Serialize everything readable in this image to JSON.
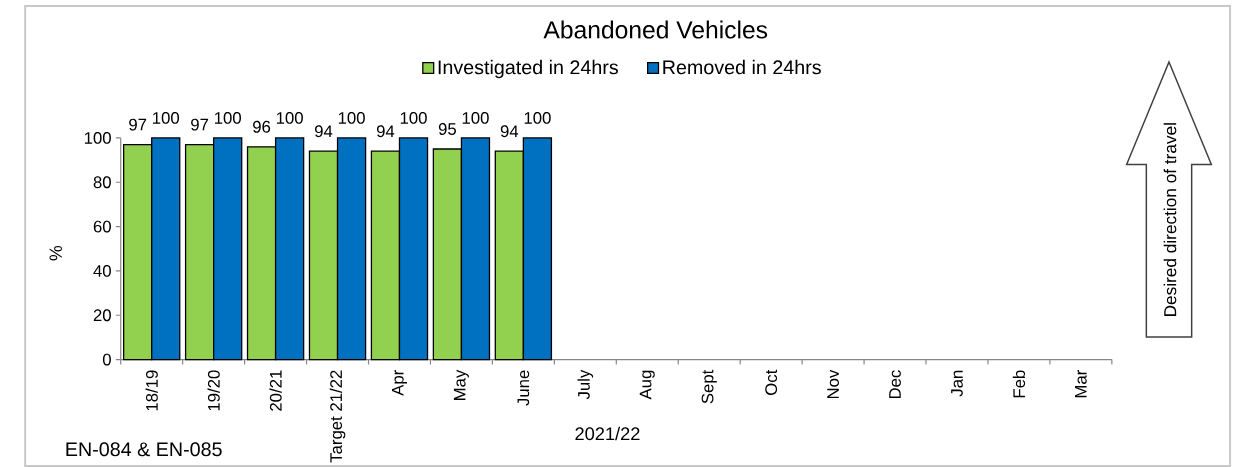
{
  "chart_data": {
    "type": "bar",
    "title": "Abandoned Vehicles",
    "xlabel": "2021/22",
    "ylabel": "%",
    "categories": [
      "18/19",
      "19/20",
      "20/21",
      "Target 21/22",
      "Apr",
      "May",
      "June",
      "July",
      "Aug",
      "Sept",
      "Oct",
      "Nov",
      "Dec",
      "Jan",
      "Feb",
      "Mar"
    ],
    "series": [
      {
        "name": "Investigated in 24hrs",
        "color": "#92d050",
        "values": [
          97,
          97,
          96,
          94,
          94,
          95,
          94,
          null,
          null,
          null,
          null,
          null,
          null,
          null,
          null,
          null
        ]
      },
      {
        "name": "Removed in 24hrs",
        "color": "#0070c0",
        "values": [
          100,
          100,
          100,
          100,
          100,
          100,
          100,
          null,
          null,
          null,
          null,
          null,
          null,
          null,
          null,
          null
        ]
      }
    ],
    "ylim": [
      0,
      100
    ],
    "yticks": [
      0,
      20,
      40,
      60,
      80,
      100
    ],
    "legend": "top",
    "data_labels": true,
    "annotations": [
      "Desired direction of travel",
      "EN-084 & EN-085"
    ]
  }
}
